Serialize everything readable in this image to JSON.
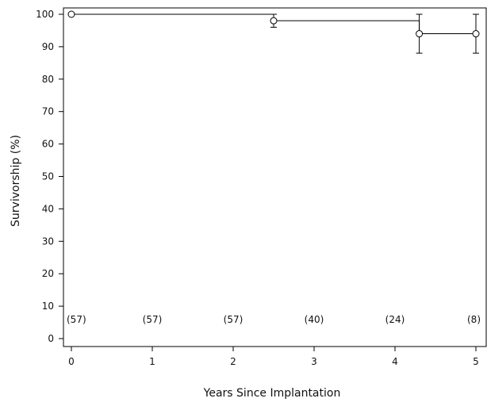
{
  "chart_data": {
    "type": "line",
    "title": "",
    "xlabel": "Years Since Implantation",
    "ylabel": "Survivorship (%)",
    "xlim": [
      0,
      5
    ],
    "ylim": [
      0,
      100
    ],
    "x_ticks": [
      "0",
      "1",
      "2",
      "3",
      "4",
      "5"
    ],
    "y_ticks": [
      "0",
      "10",
      "20",
      "30",
      "40",
      "50",
      "60",
      "70",
      "80",
      "90",
      "100"
    ],
    "step": true,
    "grid": false,
    "series": [
      {
        "points": [
          {
            "x": 0,
            "y": 100
          },
          {
            "x": 2.5,
            "y": 98,
            "err_low": 96,
            "err_high": 100
          },
          {
            "x": 4.3,
            "y": 94,
            "err_low": 88,
            "err_high": 100
          },
          {
            "x": 5,
            "y": 94,
            "err_low": 88,
            "err_high": 100
          }
        ]
      }
    ],
    "numbers_at_risk": [
      {
        "x": 0,
        "label": "(57)"
      },
      {
        "x": 1,
        "label": "(57)"
      },
      {
        "x": 2,
        "label": "(57)"
      },
      {
        "x": 3,
        "label": "(40)"
      },
      {
        "x": 4,
        "label": "(24)"
      },
      {
        "x": 5,
        "label": "(8)"
      }
    ]
  }
}
